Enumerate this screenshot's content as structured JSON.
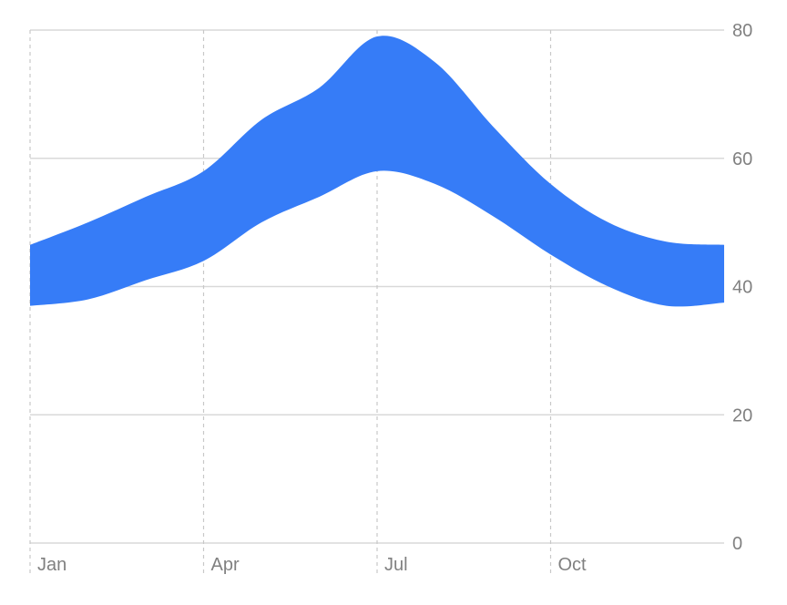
{
  "chart_data": {
    "type": "area",
    "subtype": "range-band",
    "title": "",
    "xlabel": "",
    "ylabel": "",
    "x_tick_labels": [
      "Jan",
      "Apr",
      "Jul",
      "Oct"
    ],
    "y_tick_labels": [
      "0",
      "20",
      "40",
      "60",
      "80"
    ],
    "y_ticks": [
      0,
      20,
      40,
      60,
      80
    ],
    "ylim": [
      0,
      80
    ],
    "x_domain": [
      1,
      13
    ],
    "y_axis_position": "right",
    "grid": {
      "horizontal": true,
      "vertical": true,
      "vertical_style": "dashed"
    },
    "legend": "none",
    "series": [
      {
        "color": "#367cf7",
        "x": [
          1,
          2,
          3,
          4,
          5,
          6,
          7,
          8,
          9,
          10,
          11,
          12,
          13
        ],
        "low": [
          37,
          38,
          41,
          44,
          50,
          54,
          58,
          56,
          51,
          45,
          40,
          37,
          37.5
        ],
        "high": [
          46.5,
          50,
          54,
          58,
          66,
          71,
          79,
          75,
          65,
          56,
          50,
          47,
          46.5
        ]
      }
    ]
  }
}
